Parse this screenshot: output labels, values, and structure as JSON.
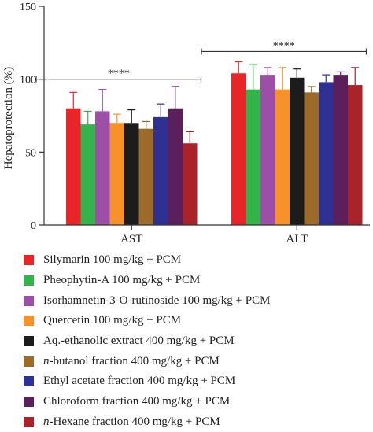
{
  "chart_data": {
    "type": "bar",
    "ylabel": "Hepatoprotection (%)",
    "ylim": [
      0,
      150
    ],
    "yticks": [
      0,
      50,
      100,
      150
    ],
    "categories": [
      "AST",
      "ALT"
    ],
    "significance": [
      {
        "category": "AST",
        "label": "****"
      },
      {
        "category": "ALT",
        "label": "****"
      }
    ],
    "series": [
      {
        "name": "Silymarin 100 mg/kg + PCM",
        "color": "#e8262a",
        "values": [
          80,
          104
        ],
        "errors": [
          11,
          8
        ]
      },
      {
        "name": "Pheophytin-A 100 mg/kg + PCM",
        "color": "#33b34a",
        "values": [
          69,
          93
        ],
        "errors": [
          9,
          17
        ]
      },
      {
        "name": "Isorhamnetin-3-O-rutinoside 100 mg/kg + PCM",
        "color": "#9b4fa6",
        "values": [
          78,
          103
        ],
        "errors": [
          15,
          5
        ]
      },
      {
        "name": "Quercetin 100 mg/kg + PCM",
        "color": "#f7922b",
        "values": [
          70,
          93
        ],
        "errors": [
          6,
          15
        ]
      },
      {
        "name": "Aq.-ethanolic extract 400 mg/kg + PCM",
        "color": "#1c1c1c",
        "values": [
          70,
          101
        ],
        "errors": [
          9,
          6
        ]
      },
      {
        "name": "n-butanol fraction 400 mg/kg + PCM",
        "color": "#9c6b2a",
        "values": [
          66,
          91
        ],
        "errors": [
          5,
          4
        ]
      },
      {
        "name": "Ethyl acetate fraction 400 mg/kg + PCM",
        "color": "#2e3192",
        "values": [
          74,
          98
        ],
        "errors": [
          9,
          5
        ]
      },
      {
        "name": "Chloroform fraction 400 mg/kg + PCM",
        "color": "#5b1f5b",
        "values": [
          80,
          103
        ],
        "errors": [
          15,
          2
        ]
      },
      {
        "name": "n-Hexane fraction 400 mg/kg + PCM",
        "color": "#a8232a",
        "values": [
          56,
          96
        ],
        "errors": [
          8,
          12
        ]
      }
    ]
  }
}
